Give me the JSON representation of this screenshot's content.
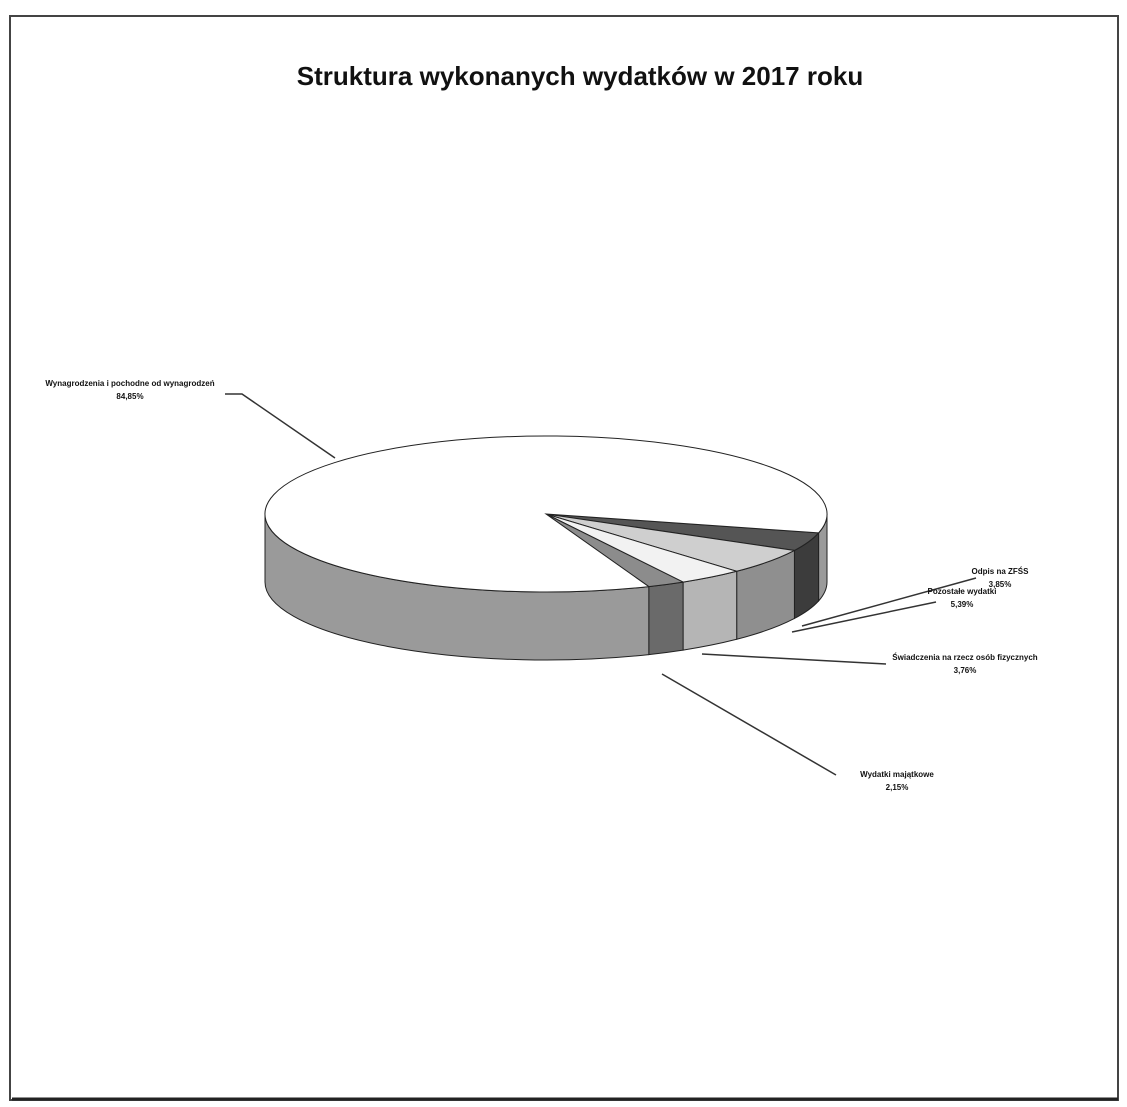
{
  "chart_data": {
    "type": "pie3d",
    "title": "Struktura wykonanych wydatków w 2017 roku",
    "categories": [
      "Odpis na ZFŚS",
      "Pozostałe wydatki",
      "Świadczenia na rzecz osób fizycznych",
      "Wydatki majątkowe",
      "Wynagrodzenia i pochodne od wynagrodzeń"
    ],
    "values": [
      3.85,
      5.39,
      3.76,
      2.15,
      84.85
    ],
    "value_labels": [
      "3,85%",
      "5,39%",
      "3,76%",
      "2,15%",
      "84,85%"
    ],
    "colors": [
      "#555555",
      "#cfcfcf",
      "#f2f2f2",
      "#8c8c8c",
      "#ffffff"
    ],
    "side_colors": [
      "#3c3c3c",
      "#8f8f8f",
      "#b5b5b5",
      "#6a6a6a",
      "#9a9a9a"
    ]
  }
}
